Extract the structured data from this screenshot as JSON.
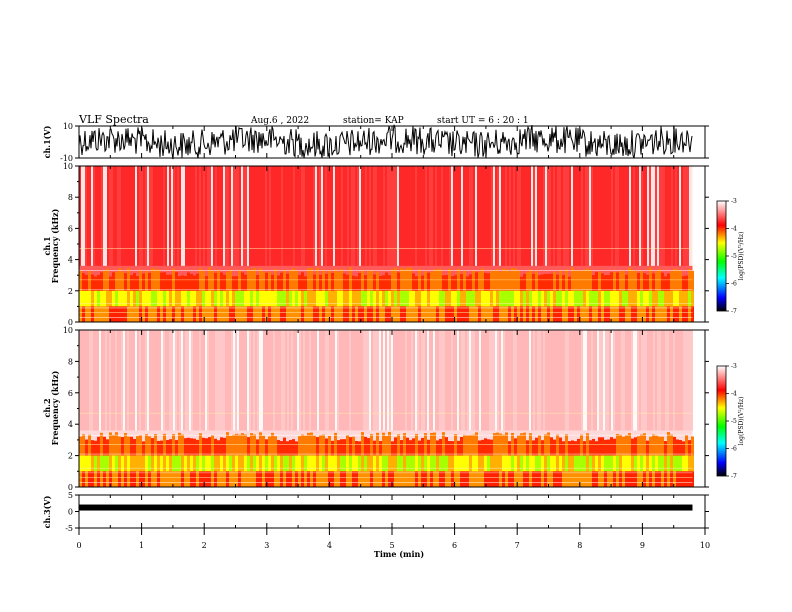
{
  "header": {
    "title": "VLF Spectra",
    "date": "Aug.6  , 2022",
    "station": "station= KAP",
    "start": "start  UT  =   6  : 20 : 1"
  },
  "chart_data": [
    {
      "type": "line",
      "panel": "ch1-waveform",
      "ylabel": "ch.1(V)",
      "ylim": [
        -10,
        10
      ],
      "yticks": [
        "10",
        "-10"
      ],
      "xlim": [
        0,
        9.8
      ],
      "color": "#000000"
    },
    {
      "type": "heatmap",
      "panel": "ch1-spectrogram",
      "ylabel": "ch.1\nFrequency  (kHz)",
      "ylim": [
        0,
        10
      ],
      "yticks": [
        "0",
        "2",
        "4",
        "6",
        "8",
        "10"
      ],
      "xlim": [
        0,
        9.8
      ],
      "colorbar": {
        "label": "log(PSD)(V²/Hz)",
        "ticks": [
          "-3",
          "-4",
          "-5",
          "-6",
          "-7"
        ],
        "range": [
          -7,
          -3
        ]
      }
    },
    {
      "type": "heatmap",
      "panel": "ch2-spectrogram",
      "ylabel": "ch.2\nFrequency  (kHz)",
      "ylim": [
        0,
        10
      ],
      "yticks": [
        "0",
        "2",
        "4",
        "6",
        "8",
        "10"
      ],
      "xlim": [
        0,
        9.8
      ],
      "colorbar": {
        "label": "log(PSD)(V²/Hz)",
        "ticks": [
          "-3",
          "-4",
          "-5",
          "-6",
          "-7"
        ],
        "range": [
          -7,
          -3
        ]
      }
    },
    {
      "type": "line",
      "panel": "ch3-waveform",
      "ylabel": "ch.3(V)",
      "ylim": [
        -5,
        5
      ],
      "yticks": [
        "5",
        "0",
        "-5"
      ],
      "xlim": [
        0,
        9.8
      ],
      "color": "#000000"
    }
  ],
  "xaxis": {
    "label": "Time  (min)",
    "range": [
      0,
      10
    ],
    "ticks": [
      "0",
      "1",
      "2",
      "3",
      "4",
      "5",
      "6",
      "7",
      "8",
      "9",
      "10"
    ]
  }
}
